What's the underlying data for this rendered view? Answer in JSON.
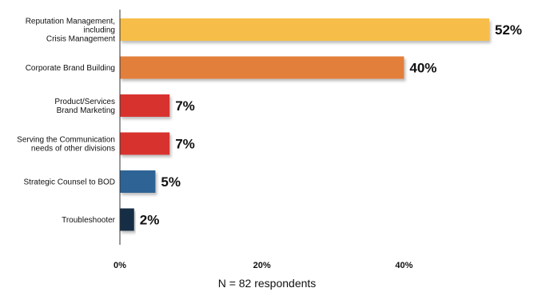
{
  "chart_data": {
    "type": "bar",
    "orientation": "horizontal",
    "categories": [
      [
        "Reputation Management,",
        "including",
        "Crisis Management"
      ],
      [
        "Corporate Brand Building"
      ],
      [
        "Product/Services",
        "Brand Marketing"
      ],
      [
        "Serving the Communication",
        "needs of other divisions"
      ],
      [
        "Strategic Counsel to BOD"
      ],
      [
        "Troubleshooter"
      ]
    ],
    "values": [
      52,
      40,
      7,
      7,
      5,
      2
    ],
    "value_labels": [
      "52%",
      "40%",
      "7%",
      "7%",
      "5%",
      "2%"
    ],
    "colors": [
      "#F6BE4A",
      "#E27F3B",
      "#D8302E",
      "#D8302E",
      "#2F6396",
      "#172D45"
    ],
    "xlim": [
      0,
      52
    ],
    "xticks": [
      0,
      20,
      40
    ],
    "xtick_labels": [
      "0%",
      "20%",
      "40%"
    ],
    "grid": false,
    "legend": "none",
    "footnote": "N = 82 respondents"
  }
}
